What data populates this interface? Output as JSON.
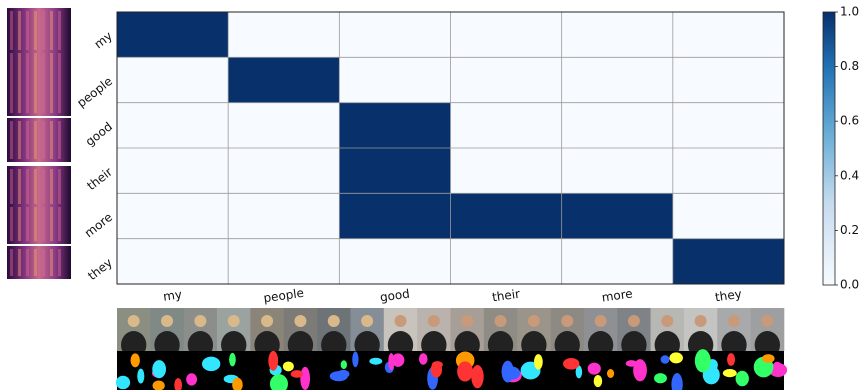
{
  "chart_data": {
    "type": "heatmap",
    "title": "",
    "xlabel": "",
    "ylabel": "",
    "x_categories": [
      "my",
      "people",
      "good",
      "their",
      "more",
      "they"
    ],
    "y_categories": [
      "my",
      "people",
      "good",
      "their",
      "more",
      "they"
    ],
    "values": [
      [
        1,
        0,
        0,
        0,
        0,
        0
      ],
      [
        0,
        1,
        0,
        0,
        0,
        0
      ],
      [
        0,
        0,
        1,
        0,
        0,
        0
      ],
      [
        0,
        0,
        1,
        0,
        0,
        0
      ],
      [
        0,
        0,
        1,
        1,
        1,
        0
      ],
      [
        0,
        0,
        0,
        0,
        0,
        1
      ]
    ],
    "colorbar": {
      "range": [
        0,
        1
      ],
      "ticks": [
        "0.0",
        "0.2",
        "0.4",
        "0.6",
        "0.8",
        "1.0"
      ],
      "colors": {
        "low": "#f7fbff",
        "mid": "#6aaed6",
        "high": "#08306b"
      }
    },
    "grid": true
  },
  "figure_extras": {
    "spectrogram_strips": 6,
    "video_frames": 20,
    "segmentation_frames": 20
  }
}
